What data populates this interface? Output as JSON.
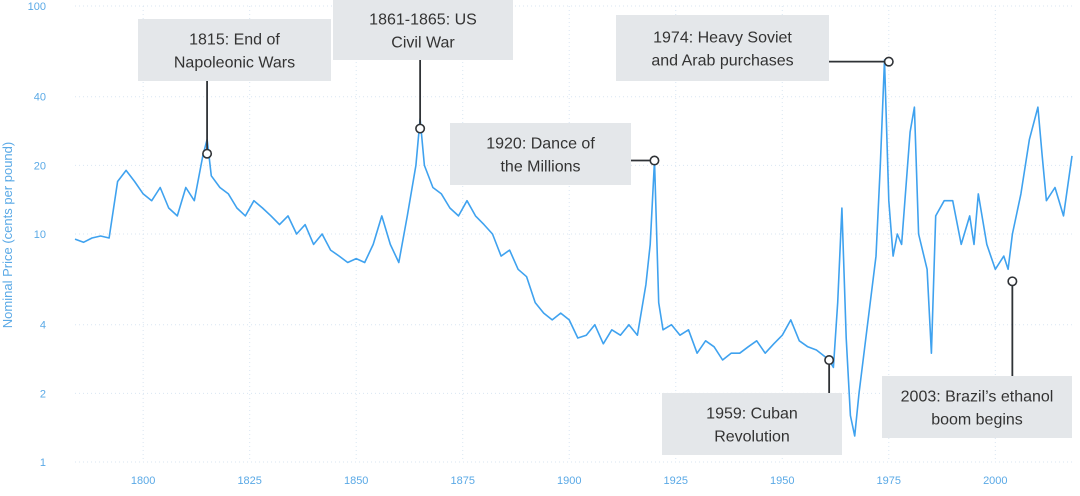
{
  "chart_data": {
    "type": "line",
    "ylabel": "Nominal Price (cents per pound)",
    "yscale": "log",
    "ylim": [
      1,
      100
    ],
    "xlim": [
      1784,
      2018
    ],
    "y_ticks": [
      1,
      2,
      4,
      10,
      20,
      40,
      100
    ],
    "x_ticks": [
      1800,
      1825,
      1850,
      1875,
      1900,
      1925,
      1950,
      1975,
      2000
    ],
    "grid": true,
    "legend": "none",
    "series_color": "#3fa2ef",
    "series": [
      {
        "x": [
          1784,
          1786,
          1788,
          1790,
          1792,
          1794,
          1796,
          1798,
          1800,
          1802,
          1804,
          1806,
          1808,
          1810,
          1812,
          1814,
          1815,
          1816,
          1818,
          1820,
          1822,
          1824,
          1826,
          1828,
          1830,
          1832,
          1834,
          1836,
          1838,
          1840,
          1842,
          1844,
          1846,
          1848,
          1850,
          1852,
          1854,
          1856,
          1858,
          1860,
          1862,
          1864,
          1865,
          1866,
          1868,
          1870,
          1872,
          1874,
          1876,
          1878,
          1880,
          1882,
          1884,
          1886,
          1888,
          1890,
          1892,
          1894,
          1896,
          1898,
          1900,
          1902,
          1904,
          1906,
          1908,
          1910,
          1912,
          1914,
          1916,
          1918,
          1919,
          1920,
          1921,
          1922,
          1924,
          1926,
          1928,
          1930,
          1932,
          1934,
          1936,
          1938,
          1940,
          1942,
          1944,
          1946,
          1948,
          1950,
          1952,
          1954,
          1956,
          1958,
          1959,
          1960,
          1961,
          1962,
          1963,
          1964,
          1965,
          1966,
          1967,
          1968,
          1970,
          1972,
          1973,
          1974,
          1975,
          1976,
          1977,
          1978,
          1980,
          1981,
          1982,
          1984,
          1985,
          1986,
          1988,
          1990,
          1992,
          1994,
          1995,
          1996,
          1998,
          2000,
          2002,
          2003,
          2004,
          2006,
          2008,
          2010,
          2011,
          2012,
          2014,
          2016,
          2018
        ],
        "y": [
          9.5,
          9.2,
          9.6,
          9.8,
          9.6,
          17,
          19,
          17,
          15,
          14,
          16,
          13,
          12,
          16,
          14,
          22,
          26,
          18,
          16,
          15,
          13,
          12,
          14,
          13,
          12,
          11,
          12,
          10,
          11,
          9,
          10,
          8.5,
          8,
          7.5,
          7.8,
          7.5,
          9,
          12,
          9,
          7.5,
          12,
          20,
          32,
          20,
          16,
          15,
          13,
          12,
          14,
          12,
          11,
          10,
          8,
          8.5,
          7,
          6.5,
          5,
          4.5,
          4.2,
          4.5,
          4.2,
          3.5,
          3.6,
          4,
          3.3,
          3.8,
          3.6,
          4,
          3.6,
          6,
          9,
          21,
          5,
          3.8,
          4,
          3.6,
          3.8,
          3,
          3.4,
          3.2,
          2.8,
          3,
          3,
          3.2,
          3.4,
          3,
          3.3,
          3.6,
          4.2,
          3.4,
          3.2,
          3.1,
          3,
          2.9,
          2.8,
          2.6,
          5,
          13,
          3.5,
          1.6,
          1.3,
          2,
          4,
          8,
          20,
          58,
          14,
          8,
          10,
          9,
          28,
          36,
          10,
          7,
          3,
          12,
          14,
          14,
          9,
          12,
          9,
          15,
          9,
          7,
          8,
          7,
          10,
          15,
          26,
          36,
          22,
          14,
          16,
          12,
          22
        ]
      }
    ],
    "annotations": [
      {
        "text": [
          "1815: End of",
          "Napoleonic Wars"
        ],
        "x": 1815,
        "y": 22.5
      },
      {
        "text": [
          "1861-1865: US",
          "Civil War"
        ],
        "x": 1865,
        "y": 29
      },
      {
        "text": [
          "1920: Dance of",
          "the Millions"
        ],
        "x": 1920,
        "y": 21
      },
      {
        "text": [
          "1974: Heavy Soviet",
          "and Arab purchases"
        ],
        "x": 1975,
        "y": 57
      },
      {
        "text": [
          "1959: Cuban",
          "Revolution"
        ],
        "x": 1961,
        "y": 2.8
      },
      {
        "text": [
          "2003: Brazil’s ethanol",
          "boom begins"
        ],
        "x": 2004,
        "y": 6.2
      }
    ]
  }
}
